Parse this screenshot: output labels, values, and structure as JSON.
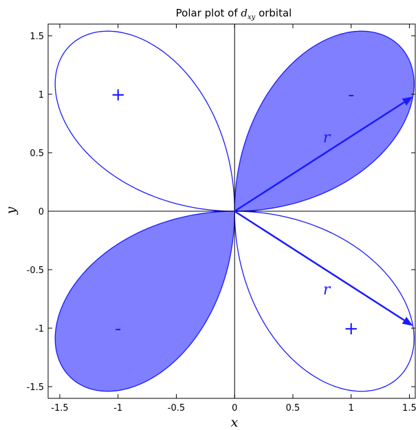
{
  "chart_data": {
    "type": "line",
    "title": "Polar plot of dxy orbital",
    "title_parts": {
      "prefix": "Polar plot of ",
      "symbol": "d",
      "subscript": "xy",
      "suffix": " orbital"
    },
    "xlabel": "x",
    "ylabel": "y",
    "xlim": [
      -1.6,
      1.55
    ],
    "ylim": [
      -1.6,
      1.6
    ],
    "xticks": [
      {
        "value": -1.5,
        "label": "-1.5"
      },
      {
        "value": -1.0,
        "label": "-1"
      },
      {
        "value": -0.5,
        "label": "-0.5"
      },
      {
        "value": 0.0,
        "label": "0"
      },
      {
        "value": 0.5,
        "label": "0.5"
      },
      {
        "value": 1.0,
        "label": "1"
      },
      {
        "value": 1.5,
        "label": "1.5"
      }
    ],
    "yticks": [
      {
        "value": -1.5,
        "label": "-1.5"
      },
      {
        "value": -1.0,
        "label": "-1"
      },
      {
        "value": -0.5,
        "label": "-0.5"
      },
      {
        "value": 0.0,
        "label": "0"
      },
      {
        "value": 0.5,
        "label": "0.5"
      },
      {
        "value": 1.0,
        "label": "1"
      },
      {
        "value": 1.5,
        "label": "1.5"
      }
    ],
    "grid": false,
    "curve": {
      "polar_function": "r = 2|sin(2θ)|",
      "lobes": [
        {
          "quadrant": "I",
          "theta_range_deg": [
            0,
            90
          ],
          "filled": true,
          "sign": "-",
          "sign_position": [
            1.0,
            1.0
          ]
        },
        {
          "quadrant": "II",
          "theta_range_deg": [
            90,
            180
          ],
          "filled": false,
          "sign": "+",
          "sign_position": [
            -1.0,
            1.0
          ]
        },
        {
          "quadrant": "III",
          "theta_range_deg": [
            180,
            270
          ],
          "filled": true,
          "sign": "-",
          "sign_position": [
            -1.0,
            -1.0
          ]
        },
        {
          "quadrant": "IV",
          "theta_range_deg": [
            270,
            360
          ],
          "filled": false,
          "sign": "+",
          "sign_position": [
            1.0,
            -1.0
          ]
        }
      ]
    },
    "annotations": [
      {
        "type": "arrow",
        "from": [
          0,
          0
        ],
        "to": [
          1.53,
          0.98
        ],
        "label": "r",
        "label_position": [
          0.79,
          0.63
        ]
      },
      {
        "type": "arrow",
        "from": [
          0,
          0
        ],
        "to": [
          1.53,
          -0.98
        ],
        "label": "r",
        "label_position": [
          0.79,
          -0.67
        ]
      }
    ],
    "colors": {
      "line": "#1a1aff",
      "fill": "#7f7fff",
      "axes": "#000000",
      "text_accent": "#1a1aff"
    }
  }
}
